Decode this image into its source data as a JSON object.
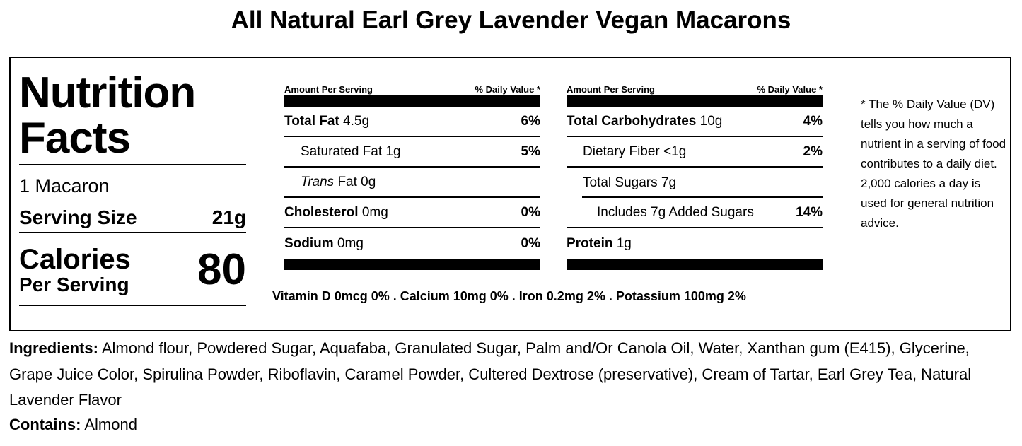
{
  "title": "All Natural Earl Grey Lavender Vegan Macarons",
  "facts": {
    "heading": "Nutrition Facts",
    "servings_text": "1 Macaron",
    "serving_size_label": "Serving Size",
    "serving_size_value": "21g",
    "calories_label": "Calories",
    "calories_sublabel": "Per Serving",
    "calories_value": "80"
  },
  "table_left": {
    "header_amount": "Amount Per Serving",
    "header_dv": "% Daily Value *",
    "rows": [
      {
        "name": "Total Fat",
        "amount": "4.5g",
        "dv": "6%"
      },
      {
        "name": "Saturated Fat",
        "amount": "1g",
        "dv": "5%"
      },
      {
        "name": "Trans",
        "name_rest": "Fat 0g",
        "dv": ""
      },
      {
        "name": "Cholesterol",
        "amount": "0mg",
        "dv": "0%"
      },
      {
        "name": "Sodium",
        "amount": "0mg",
        "dv": "0%"
      }
    ]
  },
  "table_right": {
    "header_amount": "Amount Per Serving",
    "header_dv": "% Daily Value *",
    "rows": [
      {
        "name": "Total Carbohydrates",
        "amount": "10g",
        "dv": "4%"
      },
      {
        "name": "Dietary Fiber",
        "amount": "<1g",
        "dv": "2%"
      },
      {
        "name": "Total Sugars",
        "amount": "7g",
        "dv": ""
      },
      {
        "name": "Includes 7g Added Sugars",
        "dv": "14%"
      },
      {
        "name": "Protein",
        "amount": "1g",
        "dv": ""
      }
    ]
  },
  "vitamins": "Vitamin D 0mcg 0% . Calcium 10mg 0% . Iron 0.2mg 2% . Potassium 100mg 2%",
  "footnote": "* The % Daily Value (DV) tells you how much a nutrient in a serving of food contributes to a daily diet. 2,000 calories a day is used for general nutrition advice.",
  "ingredients": {
    "label": "Ingredients:",
    "text": "Almond flour, Powdered Sugar, Aquafaba, Granulated Sugar, Palm and/Or Canola Oil, Water, Xanthan gum (E415), Glycerine, Grape Juice Color, Spirulina Powder, Riboflavin, Caramel Powder, Cultered Dextrose (preservative), Cream of Tartar, Earl Grey Tea, Natural Lavender Flavor"
  },
  "contains": {
    "label": "Contains:",
    "text": "Almond"
  }
}
